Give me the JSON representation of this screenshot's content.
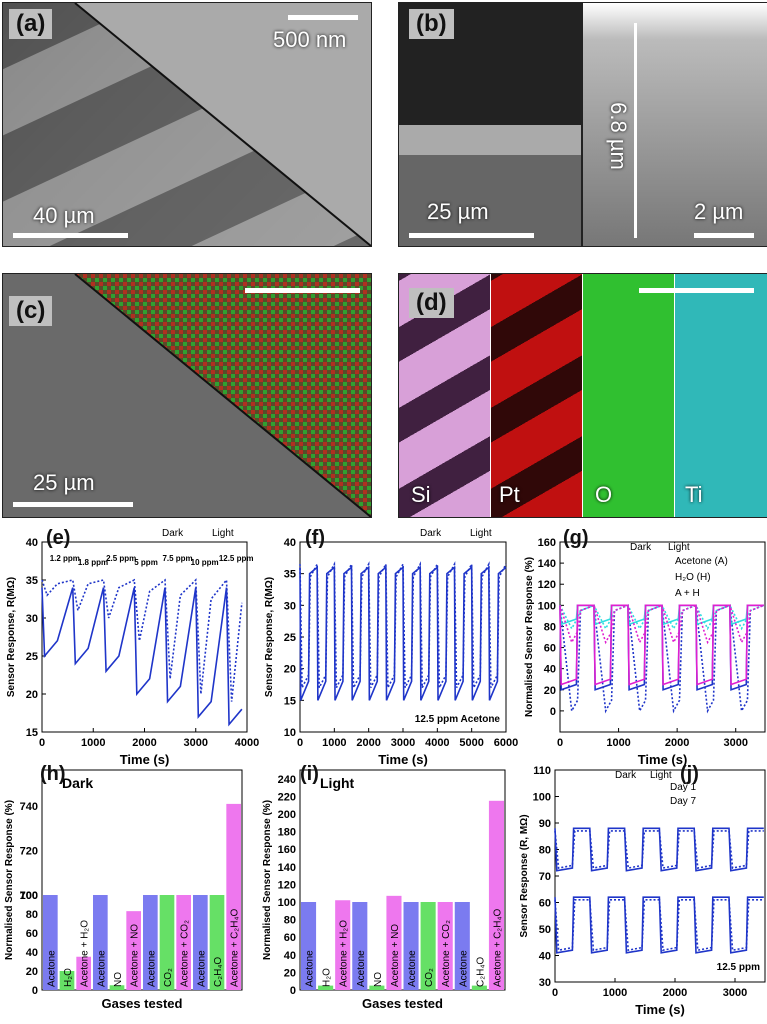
{
  "figure": {
    "panels": {
      "a": "(a)",
      "b": "(b)",
      "c": "(c)",
      "d": "(d)",
      "e": "(e)",
      "f": "(f)",
      "g": "(g)",
      "h": "(h)",
      "i": "(i)",
      "j": "(j)"
    },
    "scalebars": {
      "a_top": "500 nm",
      "a_bottom": "40 µm",
      "b_left": "25 µm",
      "b_right": "2 µm",
      "b_thickness": "6.8 µm",
      "c": "25 µm"
    },
    "eds_labels": [
      "Si",
      "Pt",
      "O",
      "Ti"
    ],
    "colors": {
      "dark_line": "#1f35c9",
      "light_line": "#1f35c9",
      "cyan": "#2fdde0",
      "magenta": "#e020d0",
      "bar_blue": "#7b7bf0",
      "bar_green": "#66e066",
      "bar_pink": "#ee77ee"
    }
  },
  "chart_data": [
    {
      "type": "line",
      "panel": "e",
      "ylabel": "Sensor Response, R(MΩ)",
      "xlabel": "Time (s)",
      "xlim": [
        0,
        4000
      ],
      "ylim": [
        15,
        40
      ],
      "xticks": [
        0,
        1000,
        2000,
        3000,
        4000
      ],
      "yticks": [
        15,
        20,
        25,
        30,
        35,
        40
      ],
      "legend": [
        "Dark",
        "Light"
      ],
      "annotations": [
        "1.2 ppm",
        "1.8 ppm",
        "2.5 ppm",
        "5 ppm",
        "7.5 ppm",
        "10 ppm",
        "12.5 ppm"
      ],
      "series": [
        {
          "name": "Dark",
          "x": [
            0,
            100,
            300,
            600,
            700,
            900,
            1200,
            1300,
            1500,
            1800,
            1900,
            2100,
            2400,
            2500,
            2700,
            3000,
            3100,
            3300,
            3600,
            3700,
            3900
          ],
          "y": [
            35,
            33,
            34.5,
            35,
            31,
            34.5,
            35,
            30,
            34,
            35,
            27,
            33.5,
            35,
            22,
            33,
            35,
            20,
            32.5,
            35,
            19,
            32
          ]
        },
        {
          "name": "Light",
          "x": [
            0,
            50,
            300,
            600,
            650,
            900,
            1200,
            1250,
            1500,
            1800,
            1850,
            2100,
            2400,
            2450,
            2700,
            3000,
            3050,
            3300,
            3600,
            3650,
            3900
          ],
          "y": [
            34,
            25,
            27,
            34,
            24,
            26,
            34,
            23,
            25,
            34,
            20,
            22,
            34,
            19,
            21,
            34,
            17,
            19,
            34,
            16,
            18
          ]
        }
      ]
    },
    {
      "type": "line",
      "panel": "f",
      "ylabel": "Sensor Response, R(MΩ)",
      "xlabel": "Time (s)",
      "xlim": [
        0,
        6000
      ],
      "ylim": [
        10,
        40
      ],
      "xticks": [
        0,
        1000,
        2000,
        3000,
        4000,
        5000,
        6000
      ],
      "yticks": [
        10,
        15,
        20,
        25,
        30,
        35,
        40
      ],
      "legend": [
        "Dark",
        "Light"
      ],
      "annotations": [
        "12.5 ppm Acetone"
      ],
      "cycles": 12,
      "light_high": 36,
      "light_low": 15,
      "dark_high": 36.5,
      "dark_low": 17
    },
    {
      "type": "line",
      "panel": "g",
      "ylabel": "Normalised Sensor Response (%)",
      "xlabel": "Time (s)",
      "xlim": [
        0,
        3500
      ],
      "ylim": [
        -20,
        160
      ],
      "xticks": [
        0,
        1000,
        2000,
        3000
      ],
      "yticks": [
        0,
        20,
        40,
        60,
        80,
        100,
        120,
        140,
        160
      ],
      "legend_header": [
        "Dark",
        "Light"
      ],
      "series": [
        {
          "name": "Acetone (A)",
          "low_dark": 0,
          "low_light": 20
        },
        {
          "name": "H₂O (H)",
          "low_dark": 78,
          "low_light": 82
        },
        {
          "name": "A + H",
          "low_dark": 65,
          "low_light": 25
        }
      ]
    },
    {
      "type": "bar",
      "panel": "h",
      "title": "Dark",
      "ylabel": "Normalised Sensor Response (%)",
      "xlabel": "Gases tested",
      "yticks_lower": [
        0,
        20,
        40,
        60,
        80,
        100
      ],
      "yticks_upper": [
        700,
        720,
        740
      ],
      "categories": [
        "Acetone",
        "H₂O",
        "Acetone + H₂O",
        "Acetone",
        "NO",
        "Acetone + NO",
        "Acetone",
        "CO₂",
        "Acetone + CO₂",
        "Acetone",
        "C₂H₄O",
        "Acetone + C₂H₄O"
      ],
      "values": [
        100,
        20,
        35,
        100,
        5,
        83,
        100,
        100,
        100,
        100,
        700,
        741
      ]
    },
    {
      "type": "bar",
      "panel": "i",
      "title": "Light",
      "ylabel": "Normalised Sensor Response (%)",
      "xlabel": "Gases tested",
      "ylim": [
        0,
        250
      ],
      "yticks": [
        0,
        20,
        40,
        60,
        80,
        100,
        120,
        140,
        160,
        180,
        200,
        220,
        240
      ],
      "categories": [
        "Acetone",
        "H₂O",
        "Acetone + H₂O",
        "Acetone",
        "NO",
        "Acetone + NO",
        "Acetone",
        "CO₂",
        "Acetone + CO₂",
        "Acetone",
        "C₂H₄O",
        "Acetone + C₂H₄O"
      ],
      "values": [
        100,
        5,
        102,
        100,
        5,
        107,
        100,
        100,
        100,
        100,
        5,
        215
      ]
    },
    {
      "type": "line",
      "panel": "j",
      "ylabel": "Sensor Response (R, MΩ)",
      "xlabel": "Time (s)",
      "xlim": [
        0,
        3500
      ],
      "ylim": [
        30,
        110
      ],
      "xticks": [
        0,
        1000,
        2000,
        3000
      ],
      "yticks": [
        30,
        40,
        50,
        60,
        70,
        80,
        90,
        100,
        110
      ],
      "legend_header": [
        "Dark",
        "Light"
      ],
      "legend": [
        "Day 1",
        "Day 7"
      ],
      "annotations": [
        "12.5 ppm"
      ]
    }
  ]
}
